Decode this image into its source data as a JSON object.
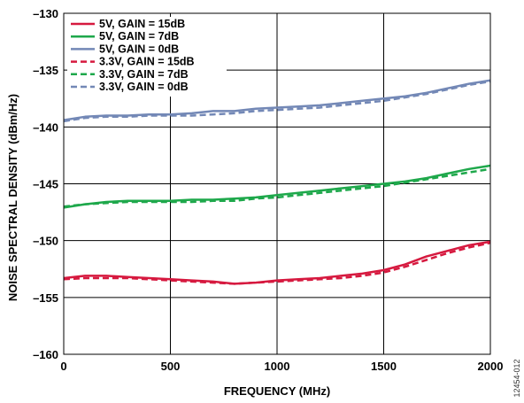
{
  "figure_id": "12454-012",
  "chart_data": {
    "type": "line",
    "title": "",
    "xlabel": "FREQUENCY (MHz)",
    "ylabel": "NOISE SPECTRAL DENSITY (dBm/Hz)",
    "xlim": [
      0,
      2000
    ],
    "ylim": [
      -160,
      -130
    ],
    "x_ticks": [
      0,
      500,
      1000,
      1500,
      2000
    ],
    "x_tick_labels": [
      "0",
      "500",
      "1000",
      "1500",
      "2000"
    ],
    "y_ticks": [
      -160,
      -155,
      -150,
      -145,
      -140,
      -135,
      -130
    ],
    "y_tick_labels": [
      "–160",
      "–155",
      "–150",
      "–145",
      "–140",
      "–135",
      "–130"
    ],
    "grid": true,
    "legend_position": "top-left",
    "x": [
      0,
      100,
      200,
      300,
      400,
      500,
      600,
      700,
      800,
      900,
      1000,
      1100,
      1200,
      1300,
      1400,
      1500,
      1600,
      1700,
      1800,
      1900,
      2000
    ],
    "series": [
      {
        "name": "5V, GAIN = 15dB",
        "color": "#d6193f",
        "dash": "solid",
        "values": [
          -153.3,
          -153.1,
          -153.1,
          -153.2,
          -153.3,
          -153.4,
          -153.5,
          -153.6,
          -153.8,
          -153.7,
          -153.5,
          -153.4,
          -153.3,
          -153.1,
          -152.9,
          -152.6,
          -152.1,
          -151.4,
          -150.9,
          -150.4,
          -150.1
        ]
      },
      {
        "name": "5V, GAIN = 7dB",
        "color": "#1ea84b",
        "dash": "solid",
        "values": [
          -147.1,
          -146.8,
          -146.6,
          -146.5,
          -146.5,
          -146.5,
          -146.4,
          -146.4,
          -146.3,
          -146.2,
          -146.0,
          -145.8,
          -145.6,
          -145.4,
          -145.2,
          -145.0,
          -144.8,
          -144.5,
          -144.1,
          -143.7,
          -143.4
        ]
      },
      {
        "name": "5V, GAIN = 0dB",
        "color": "#7388b6",
        "dash": "solid",
        "values": [
          -139.4,
          -139.1,
          -139.0,
          -139.0,
          -138.9,
          -138.9,
          -138.8,
          -138.6,
          -138.6,
          -138.4,
          -138.3,
          -138.2,
          -138.1,
          -137.9,
          -137.7,
          -137.5,
          -137.3,
          -137.0,
          -136.6,
          -136.2,
          -135.9
        ]
      },
      {
        "name": "3.3V, GAIN = 15dB",
        "color": "#d6193f",
        "dash": "dashed",
        "values": [
          -153.4,
          -153.3,
          -153.3,
          -153.3,
          -153.4,
          -153.5,
          -153.6,
          -153.7,
          -153.8,
          -153.7,
          -153.6,
          -153.5,
          -153.4,
          -153.3,
          -153.1,
          -152.8,
          -152.3,
          -151.7,
          -151.1,
          -150.6,
          -150.2
        ]
      },
      {
        "name": "3.3V, GAIN = 7dB",
        "color": "#1ea84b",
        "dash": "dashed",
        "values": [
          -147.0,
          -146.8,
          -146.7,
          -146.6,
          -146.6,
          -146.6,
          -146.6,
          -146.5,
          -146.5,
          -146.3,
          -146.2,
          -146.0,
          -145.8,
          -145.6,
          -145.4,
          -145.2,
          -144.9,
          -144.6,
          -144.3,
          -144.0,
          -143.7
        ]
      },
      {
        "name": "3.3V, GAIN = 0dB",
        "color": "#7388b6",
        "dash": "dashed",
        "values": [
          -139.5,
          -139.2,
          -139.1,
          -139.1,
          -139.0,
          -139.0,
          -139.0,
          -138.9,
          -138.8,
          -138.6,
          -138.5,
          -138.4,
          -138.3,
          -138.1,
          -137.9,
          -137.7,
          -137.4,
          -137.1,
          -136.7,
          -136.3,
          -136.0
        ]
      }
    ]
  }
}
